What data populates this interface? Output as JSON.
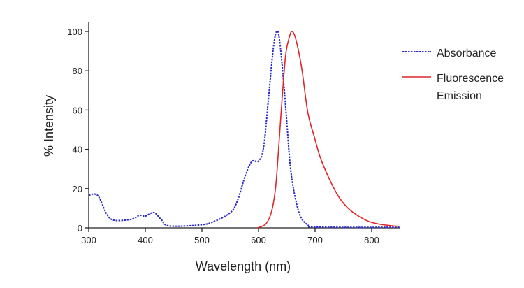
{
  "chart_data": {
    "type": "line",
    "title": "",
    "xlabel": "Wavelength (nm)",
    "ylabel": "% Intensity",
    "xlim": [
      300,
      850
    ],
    "ylim": [
      0,
      100
    ],
    "xticks": [
      300,
      400,
      500,
      600,
      700,
      800
    ],
    "yticks": [
      0,
      20,
      40,
      60,
      80,
      100
    ],
    "grid": false,
    "legend_position": "top-right",
    "series": [
      {
        "name": "Absorbance",
        "color": "#2b2bc8",
        "style": "dotted",
        "x": [
          300,
          316,
          332,
          345,
          374,
          390,
          400,
          415,
          428,
          442,
          497,
          522,
          551,
          563,
          576,
          588,
          600,
          609,
          617,
          626,
          632,
          637,
          644,
          650,
          656,
          664,
          674,
          687,
          703,
          850
        ],
        "y": [
          16.6,
          16.5,
          6.9,
          3.9,
          4.3,
          6.4,
          6.0,
          7.8,
          4.3,
          1.0,
          1.5,
          3.3,
          8.0,
          14,
          26,
          33.8,
          34,
          41,
          63.8,
          91,
          100,
          96,
          75.7,
          54,
          31.8,
          16.6,
          6,
          1.5,
          0.4,
          0.3
        ]
      },
      {
        "name": "Fluorescence Emission",
        "legend_lines": [
          "Fluorescence",
          "Emission"
        ],
        "color": "#e0262b",
        "style": "solid",
        "x": [
          598,
          613,
          623,
          630,
          635,
          641.5,
          648,
          654,
          659,
          666,
          676.5,
          687,
          699,
          711.5,
          736,
          757,
          785.6,
          810,
          847
        ],
        "y": [
          0,
          2,
          8.3,
          20,
          38,
          65,
          88,
          96.5,
          100,
          96,
          81,
          59,
          46,
          34,
          18.7,
          10.4,
          4.5,
          2.1,
          0.7
        ]
      }
    ]
  }
}
